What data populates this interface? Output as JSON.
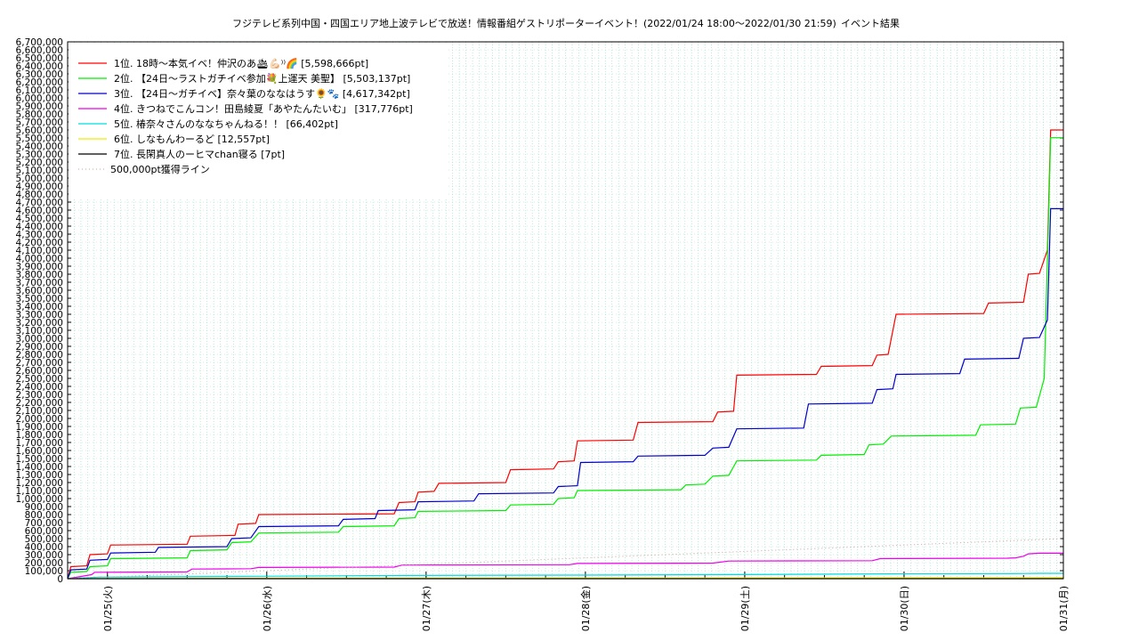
{
  "chart_data": {
    "type": "line",
    "title": "フジテレビ系列中国・四国エリア地上波テレビで放送！情報番組ゲストリポーターイベント！(2022/01/24 18:00～2022/01/30 21:59)",
    "title_suffix": "イベント結果",
    "xlabel": "",
    "ylabel": "",
    "ylim": [
      0,
      6700000
    ],
    "y_tick_step": 100000,
    "x_range_days": [
      0,
      6.25
    ],
    "x_ticks": [
      {
        "label": "01/25(火)",
        "day": 0.25
      },
      {
        "label": "01/26(水)",
        "day": 1.25
      },
      {
        "label": "01/27(木)",
        "day": 2.25
      },
      {
        "label": "01/28(金)",
        "day": 3.25
      },
      {
        "label": "01/29(土)",
        "day": 4.25
      },
      {
        "label": "01/30(日)",
        "day": 5.25
      },
      {
        "label": "01/31(月)",
        "day": 6.25
      }
    ],
    "grid": true,
    "legend_position": "top-left",
    "series": [
      {
        "name": "1位. 18時〜本気イベ！仲沢のあ🛳💪🏻⁾⁾🌈 [5,598,666pt]",
        "color": "#ff0000",
        "final": 5598666,
        "points": [
          [
            0,
            0
          ],
          [
            0.02,
            150000
          ],
          [
            0.12,
            160000
          ],
          [
            0.14,
            300000
          ],
          [
            0.25,
            310000
          ],
          [
            0.27,
            420000
          ],
          [
            0.75,
            430000
          ],
          [
            0.77,
            530000
          ],
          [
            1.05,
            540000
          ],
          [
            1.07,
            680000
          ],
          [
            1.18,
            690000
          ],
          [
            1.2,
            800000
          ],
          [
            2.05,
            810000
          ],
          [
            2.08,
            950000
          ],
          [
            2.18,
            960000
          ],
          [
            2.2,
            1080000
          ],
          [
            2.3,
            1090000
          ],
          [
            2.33,
            1190000
          ],
          [
            2.75,
            1200000
          ],
          [
            2.78,
            1360000
          ],
          [
            3.05,
            1370000
          ],
          [
            3.08,
            1460000
          ],
          [
            3.18,
            1470000
          ],
          [
            3.2,
            1720000
          ],
          [
            3.55,
            1730000
          ],
          [
            3.58,
            1950000
          ],
          [
            4.05,
            1960000
          ],
          [
            4.08,
            2080000
          ],
          [
            4.18,
            2090000
          ],
          [
            4.2,
            2540000
          ],
          [
            4.7,
            2550000
          ],
          [
            4.73,
            2650000
          ],
          [
            5.05,
            2660000
          ],
          [
            5.08,
            2790000
          ],
          [
            5.15,
            2800000
          ],
          [
            5.2,
            3300000
          ],
          [
            5.75,
            3310000
          ],
          [
            5.78,
            3440000
          ],
          [
            6.0,
            3450000
          ],
          [
            6.03,
            3800000
          ],
          [
            6.1,
            3810000
          ],
          [
            6.15,
            4100000
          ],
          [
            6.17,
            5600000
          ],
          [
            6.25,
            5600000
          ]
        ]
      },
      {
        "name": "2位. 【24日〜ラストガチイベ参加💐上運天 美聖】 [5,503,137pt]",
        "color": "#00ee00",
        "final": 5503137,
        "points": [
          [
            0,
            0
          ],
          [
            0.02,
            80000
          ],
          [
            0.12,
            90000
          ],
          [
            0.14,
            150000
          ],
          [
            0.25,
            160000
          ],
          [
            0.27,
            250000
          ],
          [
            0.75,
            260000
          ],
          [
            0.77,
            350000
          ],
          [
            1.0,
            360000
          ],
          [
            1.03,
            450000
          ],
          [
            1.15,
            460000
          ],
          [
            1.2,
            570000
          ],
          [
            1.7,
            580000
          ],
          [
            1.73,
            650000
          ],
          [
            2.05,
            660000
          ],
          [
            2.08,
            750000
          ],
          [
            2.18,
            760000
          ],
          [
            2.2,
            840000
          ],
          [
            2.75,
            850000
          ],
          [
            2.78,
            920000
          ],
          [
            3.05,
            930000
          ],
          [
            3.08,
            1000000
          ],
          [
            3.18,
            1010000
          ],
          [
            3.2,
            1100000
          ],
          [
            3.85,
            1110000
          ],
          [
            3.88,
            1170000
          ],
          [
            4.0,
            1180000
          ],
          [
            4.05,
            1280000
          ],
          [
            4.15,
            1290000
          ],
          [
            4.2,
            1470000
          ],
          [
            4.7,
            1480000
          ],
          [
            4.73,
            1540000
          ],
          [
            5.0,
            1550000
          ],
          [
            5.03,
            1670000
          ],
          [
            5.12,
            1680000
          ],
          [
            5.17,
            1780000
          ],
          [
            5.7,
            1790000
          ],
          [
            5.73,
            1920000
          ],
          [
            5.95,
            1930000
          ],
          [
            5.98,
            2130000
          ],
          [
            6.08,
            2140000
          ],
          [
            6.13,
            2500000
          ],
          [
            6.17,
            5503137
          ],
          [
            6.25,
            5503137
          ]
        ]
      },
      {
        "name": "3位. 【24日〜ガチイベ】奈々葉のななはうす🌻🐾 [4,617,342pt]",
        "color": "#0000cc",
        "final": 4617342,
        "points": [
          [
            0,
            0
          ],
          [
            0.02,
            110000
          ],
          [
            0.12,
            120000
          ],
          [
            0.14,
            230000
          ],
          [
            0.25,
            240000
          ],
          [
            0.27,
            320000
          ],
          [
            0.55,
            330000
          ],
          [
            0.57,
            390000
          ],
          [
            1.0,
            400000
          ],
          [
            1.03,
            500000
          ],
          [
            1.15,
            510000
          ],
          [
            1.2,
            650000
          ],
          [
            1.7,
            660000
          ],
          [
            1.73,
            740000
          ],
          [
            1.93,
            750000
          ],
          [
            1.95,
            850000
          ],
          [
            2.18,
            860000
          ],
          [
            2.2,
            960000
          ],
          [
            2.55,
            970000
          ],
          [
            2.58,
            1060000
          ],
          [
            3.05,
            1070000
          ],
          [
            3.08,
            1150000
          ],
          [
            3.2,
            1160000
          ],
          [
            3.22,
            1450000
          ],
          [
            3.55,
            1460000
          ],
          [
            3.58,
            1530000
          ],
          [
            4.0,
            1540000
          ],
          [
            4.05,
            1630000
          ],
          [
            4.15,
            1640000
          ],
          [
            4.2,
            1870000
          ],
          [
            4.62,
            1880000
          ],
          [
            4.65,
            2180000
          ],
          [
            5.05,
            2190000
          ],
          [
            5.08,
            2360000
          ],
          [
            5.18,
            2370000
          ],
          [
            5.2,
            2550000
          ],
          [
            5.6,
            2560000
          ],
          [
            5.63,
            2740000
          ],
          [
            5.97,
            2750000
          ],
          [
            6.0,
            3000000
          ],
          [
            6.1,
            3010000
          ],
          [
            6.15,
            3230000
          ],
          [
            6.17,
            4617342
          ],
          [
            6.25,
            4617342
          ]
        ]
      },
      {
        "name": "4位. きつねでこんコン！田島綾夏「あやたんたいむ」 [317,776pt]",
        "color": "#ee00ee",
        "final": 317776,
        "points": [
          [
            0,
            0
          ],
          [
            0.15,
            50000
          ],
          [
            0.17,
            80000
          ],
          [
            0.75,
            85000
          ],
          [
            0.78,
            120000
          ],
          [
            1.15,
            125000
          ],
          [
            1.2,
            140000
          ],
          [
            2.05,
            145000
          ],
          [
            2.1,
            170000
          ],
          [
            3.15,
            175000
          ],
          [
            3.2,
            190000
          ],
          [
            4.05,
            195000
          ],
          [
            4.15,
            220000
          ],
          [
            5.05,
            225000
          ],
          [
            5.1,
            250000
          ],
          [
            5.9,
            255000
          ],
          [
            5.95,
            260000
          ],
          [
            6.0,
            280000
          ],
          [
            6.03,
            310000
          ],
          [
            6.1,
            317776
          ],
          [
            6.25,
            317776
          ]
        ]
      },
      {
        "name": "5位. 椿奈々さんのななちゃんねる！！ [66,402pt]",
        "color": "#00dddd",
        "final": 66402,
        "points": [
          [
            0,
            0
          ],
          [
            0.2,
            20000
          ],
          [
            1.2,
            30000
          ],
          [
            2.1,
            40000
          ],
          [
            3.2,
            45000
          ],
          [
            4.1,
            50000
          ],
          [
            5.15,
            60000
          ],
          [
            6.0,
            64000
          ],
          [
            6.1,
            66402
          ],
          [
            6.25,
            66402
          ]
        ]
      },
      {
        "name": "6位. しなもんわーるど [12,557pt]",
        "color": "#eeee00",
        "final": 12557,
        "points": [
          [
            0,
            0
          ],
          [
            0.5,
            3000
          ],
          [
            1.5,
            5000
          ],
          [
            2.5,
            7000
          ],
          [
            3.5,
            8500
          ],
          [
            4.5,
            10000
          ],
          [
            5.5,
            11500
          ],
          [
            6.25,
            12557
          ]
        ]
      },
      {
        "name": "7位. 長閑真人のーヒマchan寝る [7pt]",
        "color": "#000000",
        "final": 7,
        "points": [
          [
            0,
            0
          ],
          [
            6.25,
            7
          ]
        ]
      },
      {
        "name": "500,000pt獲得ライン",
        "color": "#c8a0a0",
        "dotted": true,
        "points": [
          [
            0,
            0
          ],
          [
            6.25,
            500000
          ]
        ]
      }
    ]
  }
}
